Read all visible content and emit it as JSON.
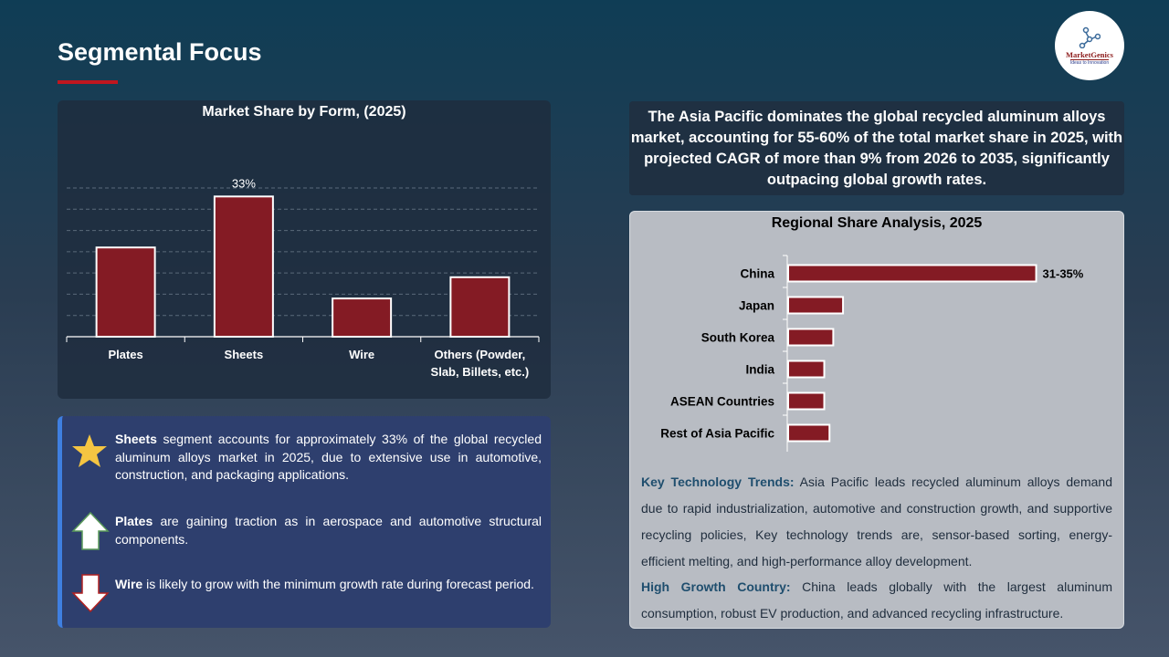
{
  "page": {
    "title": "Segmental Focus"
  },
  "logo": {
    "name": "MarketGenics",
    "tagline": "Ideas to Innovation"
  },
  "colors": {
    "accent": "#c0161f",
    "bar": "#841b24",
    "bar_border": "#ffffff",
    "bullet_border": "#3f7fe0"
  },
  "headline": "The Asia Pacific dominates the global recycled aluminum alloys market, accounting for 55-60% of the total market share in 2025, with projected CAGR of more than 9% from 2026 to 2035, significantly outpacing global growth rates.",
  "bullets": [
    {
      "icon": "star-icon",
      "bold": "Sheets",
      "text": " segment accounts for approximately 33% of the global recycled aluminum alloys  market in 2025, due to extensive use in automotive, construction, and packaging applications."
    },
    {
      "icon": "arrow-up-icon",
      "bold": "Plates",
      "text": " are gaining traction as in aerospace and automotive structural components."
    },
    {
      "icon": "arrow-down-icon",
      "bold": "Wire",
      "text": " is likely to grow with the minimum growth rate during forecast period."
    }
  ],
  "trends": {
    "k1": "Key Technology Trends:",
    "t1": " Asia Pacific leads recycled aluminum alloys  demand due to rapid industrialization, automotive and construction growth, and supportive recycling policies, Key technology trends are, sensor-based sorting, energy-efficient melting, and high-performance alloy development.",
    "k2": "High Growth Country:",
    "t2": " China leads globally with the largest aluminum consumption, robust EV production, and advanced recycling infrastructure."
  },
  "chart_data": [
    {
      "type": "bar",
      "title": "Market Share by Form, (2025)",
      "categories": [
        "Plates",
        "Sheets",
        "Wire",
        "Others (Powder, Slab, Billets, etc.)"
      ],
      "values": [
        21,
        33,
        9,
        14
      ],
      "data_labels": [
        "",
        "33%",
        "",
        ""
      ],
      "ylim": [
        0,
        35
      ],
      "grid": true,
      "unit": "%"
    },
    {
      "type": "bar",
      "orientation": "horizontal",
      "title": "Regional Share Analysis, 2025",
      "categories": [
        "China",
        "Japan",
        "South Korea",
        "India",
        "ASEAN Countries",
        "Rest of Asia Pacific"
      ],
      "values": [
        33,
        7.3,
        6,
        4.8,
        4.8,
        5.5
      ],
      "data_labels": [
        "31-35%",
        "",
        "",
        "",
        "",
        ""
      ],
      "xlim": [
        0,
        35
      ],
      "grid": false,
      "unit": "%"
    }
  ]
}
